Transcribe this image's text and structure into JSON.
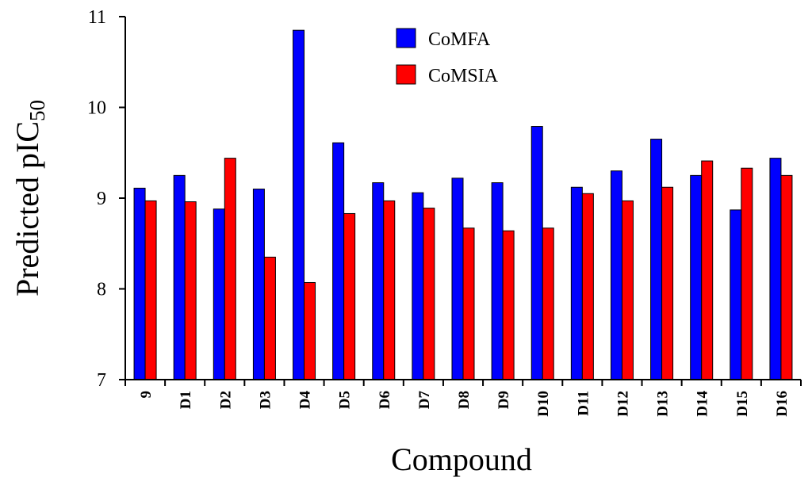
{
  "chart_data": {
    "type": "bar",
    "xlabel": "Compound",
    "ylabel": {
      "main": "Predicted pIC",
      "subscript": "50"
    },
    "ylim": [
      7,
      11
    ],
    "yticks": [
      7,
      8,
      9,
      10,
      11
    ],
    "categories": [
      "9",
      "D1",
      "D2",
      "D3",
      "D4",
      "D5",
      "D6",
      "D7",
      "D8",
      "D9",
      "D10",
      "D11",
      "D12",
      "D13",
      "D14",
      "D15",
      "D16"
    ],
    "series": [
      {
        "name": "CoMFA",
        "color": "#0000ff",
        "values": [
          9.11,
          9.25,
          8.88,
          9.1,
          10.85,
          9.61,
          9.17,
          9.06,
          9.22,
          9.17,
          9.79,
          9.12,
          9.3,
          9.65,
          9.25,
          8.87,
          9.44
        ]
      },
      {
        "name": "CoMSIA",
        "color": "#ff0000",
        "values": [
          8.97,
          8.96,
          9.44,
          8.35,
          8.07,
          8.83,
          8.97,
          8.89,
          8.67,
          8.64,
          8.67,
          9.05,
          8.97,
          9.12,
          9.41,
          9.33,
          9.25
        ]
      }
    ],
    "legend_position": "top-center",
    "grid": false
  }
}
